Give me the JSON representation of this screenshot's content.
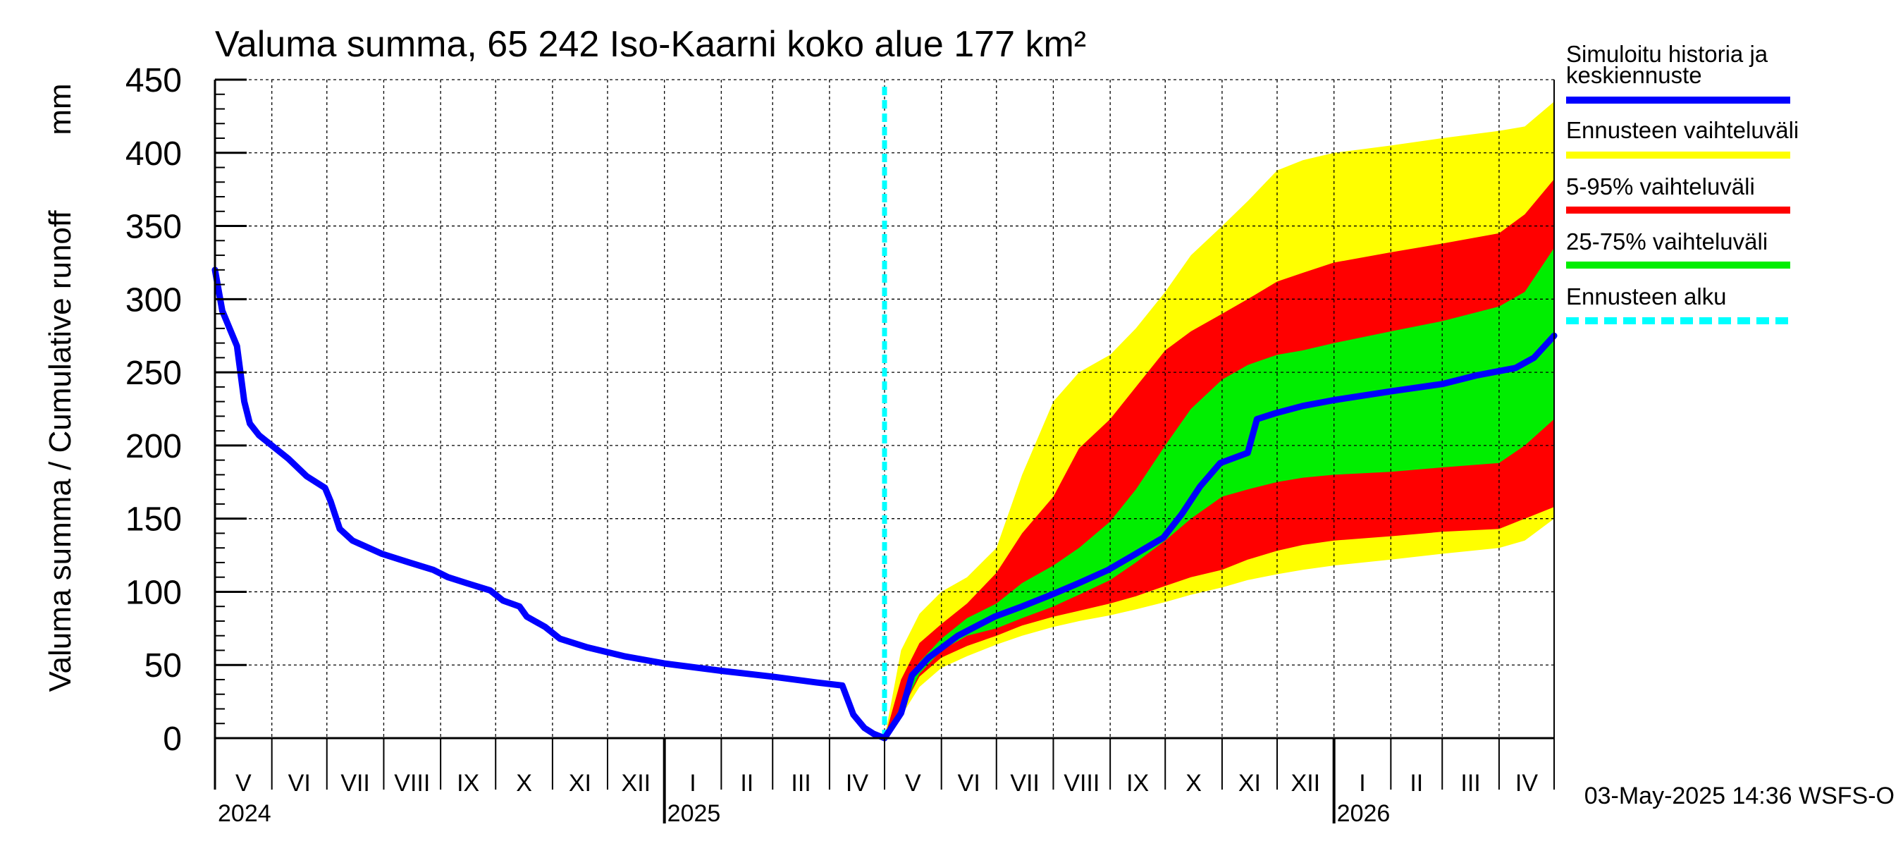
{
  "chart_data": {
    "type": "area",
    "title": "Valuma summa, 65 242 Iso-Kaarni koko alue 177 km²",
    "ylabel_fi": "Valuma summa / Cumulative runoff",
    "ylabel_unit": "mm",
    "ylim": [
      0,
      450
    ],
    "yticks": [
      0,
      50,
      100,
      150,
      200,
      250,
      300,
      350,
      400,
      450
    ],
    "xlim": [
      "2024-05-01",
      "2026-05-01"
    ],
    "grid": true,
    "months": [
      {
        "label": "V",
        "start": "2024-05-01"
      },
      {
        "label": "VI",
        "start": "2024-06-01"
      },
      {
        "label": "VII",
        "start": "2024-07-01"
      },
      {
        "label": "VIII",
        "start": "2024-08-01"
      },
      {
        "label": "IX",
        "start": "2024-09-01"
      },
      {
        "label": "X",
        "start": "2024-10-01"
      },
      {
        "label": "XI",
        "start": "2024-11-01"
      },
      {
        "label": "XII",
        "start": "2024-12-01"
      },
      {
        "label": "I",
        "start": "2025-01-01"
      },
      {
        "label": "II",
        "start": "2025-02-01"
      },
      {
        "label": "III",
        "start": "2025-03-01"
      },
      {
        "label": "IV",
        "start": "2025-04-01"
      },
      {
        "label": "V",
        "start": "2025-05-01"
      },
      {
        "label": "VI",
        "start": "2025-06-01"
      },
      {
        "label": "VII",
        "start": "2025-07-01"
      },
      {
        "label": "VIII",
        "start": "2025-08-01"
      },
      {
        "label": "IX",
        "start": "2025-09-01"
      },
      {
        "label": "X",
        "start": "2025-10-01"
      },
      {
        "label": "XI",
        "start": "2025-11-01"
      },
      {
        "label": "XII",
        "start": "2025-12-01"
      },
      {
        "label": "I",
        "start": "2026-01-01"
      },
      {
        "label": "II",
        "start": "2026-02-01"
      },
      {
        "label": "III",
        "start": "2026-03-01"
      },
      {
        "label": "IV",
        "start": "2026-04-01"
      }
    ],
    "years": [
      {
        "label": "2024",
        "start": "2024-05-01"
      },
      {
        "label": "2025",
        "start": "2025-01-01"
      },
      {
        "label": "2026",
        "start": "2026-01-01"
      }
    ],
    "forecast_start": "2025-05-01",
    "timestamp": "03-May-2025 14:36 WSFS-O",
    "legend": {
      "placement": "right",
      "items": [
        {
          "label": "Simuloitu historia ja keskiennuste",
          "color": "#0000ff",
          "style": "solid"
        },
        {
          "label": "Ennusteen vaihteluväli",
          "color": "#ffff00",
          "style": "solid"
        },
        {
          "label": "5-95% vaihteluväli",
          "color": "#ff0000",
          "style": "solid"
        },
        {
          "label": "25-75% vaihteluväli",
          "color": "#00ee00",
          "style": "solid"
        },
        {
          "label": "Ennusteen alku",
          "color": "#00ffff",
          "style": "dashed"
        }
      ]
    },
    "series": {
      "history": {
        "name": "Simuloitu historia ja keskiennuste",
        "color": "#0000ff",
        "points": [
          [
            "2024-05-01",
            320
          ],
          [
            "2024-05-05",
            292
          ],
          [
            "2024-05-10",
            277
          ],
          [
            "2024-05-13",
            268
          ],
          [
            "2024-05-17",
            230
          ],
          [
            "2024-05-20",
            215
          ],
          [
            "2024-05-25",
            207
          ],
          [
            "2024-06-01",
            200
          ],
          [
            "2024-06-10",
            191
          ],
          [
            "2024-06-20",
            179
          ],
          [
            "2024-06-30",
            171
          ],
          [
            "2024-07-03",
            162
          ],
          [
            "2024-07-08",
            143
          ],
          [
            "2024-07-15",
            135
          ],
          [
            "2024-07-31",
            126
          ],
          [
            "2024-08-15",
            120
          ],
          [
            "2024-08-28",
            115
          ],
          [
            "2024-09-05",
            110
          ],
          [
            "2024-09-15",
            106
          ],
          [
            "2024-09-28",
            101
          ],
          [
            "2024-10-05",
            94
          ],
          [
            "2024-10-14",
            90
          ],
          [
            "2024-10-18",
            83
          ],
          [
            "2024-10-28",
            76
          ],
          [
            "2024-11-05",
            68
          ],
          [
            "2024-11-20",
            62
          ],
          [
            "2024-12-10",
            56
          ],
          [
            "2025-01-01",
            51
          ],
          [
            "2025-02-01",
            46
          ],
          [
            "2025-03-01",
            42
          ],
          [
            "2025-03-25",
            38
          ],
          [
            "2025-04-08",
            36
          ],
          [
            "2025-04-14",
            16
          ],
          [
            "2025-04-20",
            7
          ],
          [
            "2025-04-25",
            3
          ],
          [
            "2025-05-01",
            0
          ]
        ]
      },
      "median": {
        "name": "Simuloitu historia ja keskiennuste",
        "color": "#0000ff",
        "points": [
          [
            "2025-05-01",
            0
          ],
          [
            "2025-05-10",
            17
          ],
          [
            "2025-05-16",
            43
          ],
          [
            "2025-05-25",
            55
          ],
          [
            "2025-06-10",
            70
          ],
          [
            "2025-06-30",
            83
          ],
          [
            "2025-07-15",
            90
          ],
          [
            "2025-07-31",
            98
          ],
          [
            "2025-08-15",
            106
          ],
          [
            "2025-08-31",
            115
          ],
          [
            "2025-09-15",
            126
          ],
          [
            "2025-09-30",
            137
          ],
          [
            "2025-10-10",
            153
          ],
          [
            "2025-10-20",
            172
          ],
          [
            "2025-10-31",
            188
          ],
          [
            "2025-11-15",
            195
          ],
          [
            "2025-11-20",
            218
          ],
          [
            "2025-11-30",
            222
          ],
          [
            "2025-12-15",
            227
          ],
          [
            "2026-01-01",
            231
          ],
          [
            "2026-02-01",
            237
          ],
          [
            "2026-03-01",
            242
          ],
          [
            "2026-03-20",
            248
          ],
          [
            "2026-04-10",
            253
          ],
          [
            "2026-04-20",
            260
          ],
          [
            "2026-05-01",
            275
          ]
        ]
      },
      "bands": {
        "dates": [
          "2025-05-01",
          "2025-05-10",
          "2025-05-20",
          "2025-06-01",
          "2025-06-15",
          "2025-07-01",
          "2025-07-15",
          "2025-08-01",
          "2025-08-15",
          "2025-09-01",
          "2025-09-15",
          "2025-10-01",
          "2025-10-15",
          "2025-11-01",
          "2025-11-15",
          "2025-12-01",
          "2025-12-15",
          "2026-01-01",
          "2026-02-01",
          "2026-03-01",
          "2026-04-01",
          "2026-04-15",
          "2026-05-01"
        ],
        "outer": {
          "name": "Ennusteen vaihteluväli",
          "color": "#ffff00",
          "low": [
            0,
            15,
            35,
            48,
            56,
            64,
            70,
            76,
            80,
            84,
            88,
            93,
            98,
            103,
            108,
            112,
            115,
            118,
            122,
            126,
            130,
            135,
            150
          ],
          "high": [
            0,
            60,
            85,
            100,
            110,
            130,
            180,
            230,
            250,
            262,
            280,
            305,
            330,
            350,
            367,
            388,
            395,
            400,
            405,
            410,
            415,
            418,
            435
          ]
        },
        "p5_95": {
          "name": "5-95% vaihteluväli",
          "color": "#ff0000",
          "low": [
            0,
            18,
            42,
            55,
            63,
            70,
            77,
            83,
            87,
            92,
            97,
            104,
            110,
            115,
            122,
            128,
            132,
            135,
            138,
            141,
            143,
            150,
            158
          ],
          "high": [
            0,
            40,
            65,
            78,
            92,
            113,
            140,
            165,
            198,
            218,
            240,
            265,
            278,
            290,
            300,
            312,
            318,
            325,
            332,
            338,
            345,
            358,
            382
          ]
        },
        "p25_75": {
          "name": "25-75% vaihteluväli",
          "color": "#00ee00",
          "low": [
            0,
            18,
            44,
            60,
            70,
            75,
            82,
            90,
            98,
            108,
            120,
            135,
            150,
            165,
            170,
            175,
            178,
            180,
            182,
            185,
            188,
            200,
            218
          ],
          "high": [
            0,
            22,
            52,
            68,
            82,
            92,
            106,
            118,
            130,
            148,
            170,
            200,
            225,
            245,
            255,
            262,
            265,
            270,
            278,
            285,
            295,
            305,
            335
          ]
        }
      }
    }
  }
}
